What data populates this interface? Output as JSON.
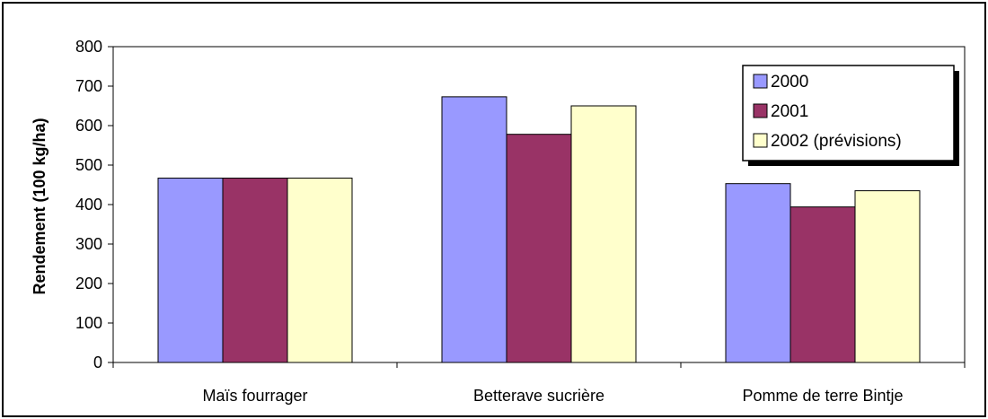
{
  "chart_data": {
    "type": "bar",
    "title": "",
    "xlabel": "",
    "ylabel": "Rendement (100 kg/ha)",
    "ylim": [
      0,
      800
    ],
    "yticks": [
      0,
      100,
      200,
      300,
      400,
      500,
      600,
      700,
      800
    ],
    "grid": false,
    "legend_position": "top-right",
    "categories": [
      "Maïs fourrager",
      "Betterave sucrière",
      "Pomme de terre Bintje"
    ],
    "series": [
      {
        "name": "2000",
        "color": "#9999ff",
        "values": [
          467,
          673,
          453
        ]
      },
      {
        "name": "2001",
        "color": "#993366",
        "values": [
          467,
          578,
          394
        ]
      },
      {
        "name": "2002 (prévisions)",
        "color": "#ffffcc",
        "values": [
          467,
          650,
          435
        ]
      }
    ]
  }
}
